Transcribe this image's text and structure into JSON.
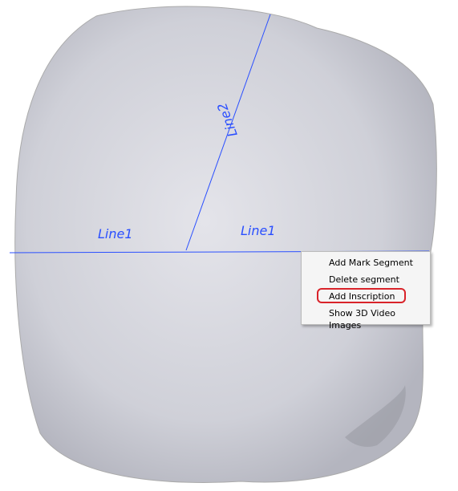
{
  "labels": [
    "Line1",
    "Line1",
    "Line2"
  ],
  "menu": {
    "items": [
      "Add Mark Segment",
      "Delete segment",
      "Add Inscription",
      "Show 3D Video Images"
    ]
  }
}
